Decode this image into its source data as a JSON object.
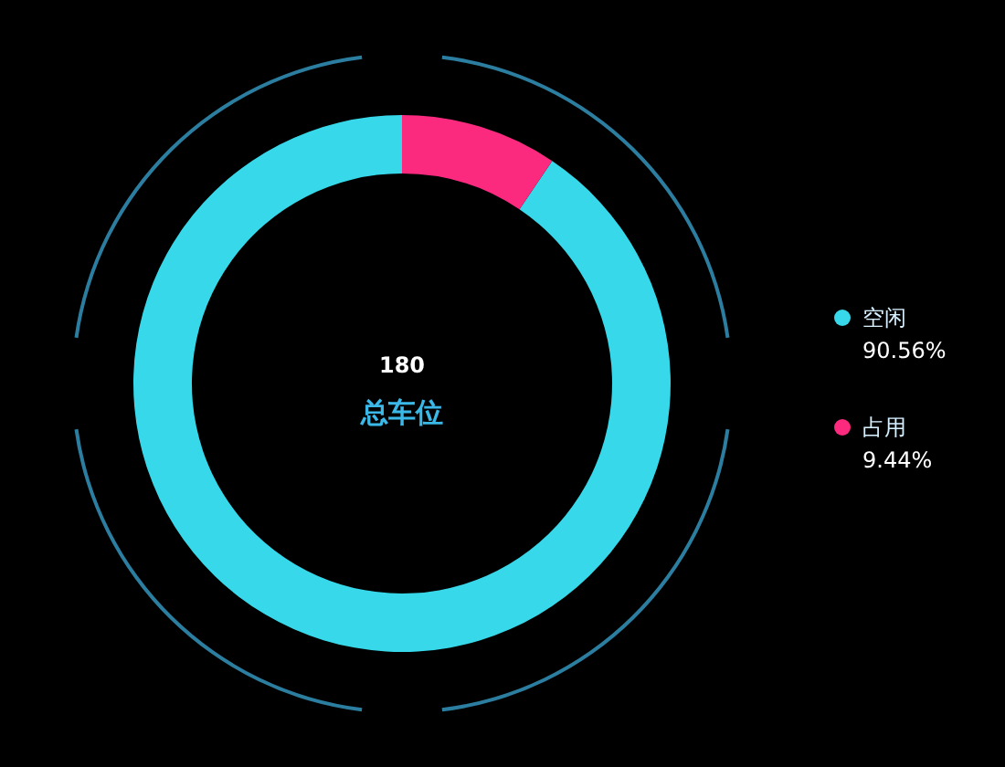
{
  "chart_data": {
    "type": "donut",
    "categories": [
      "空闲",
      "占用"
    ],
    "values": [
      90.56,
      9.44
    ],
    "colors": [
      "#36d8ea",
      "#fb2a7f"
    ],
    "value_labels": [
      "90.56%",
      "9.44%"
    ],
    "legend": "right",
    "annotations": [
      "180",
      "总车位"
    ]
  }
}
